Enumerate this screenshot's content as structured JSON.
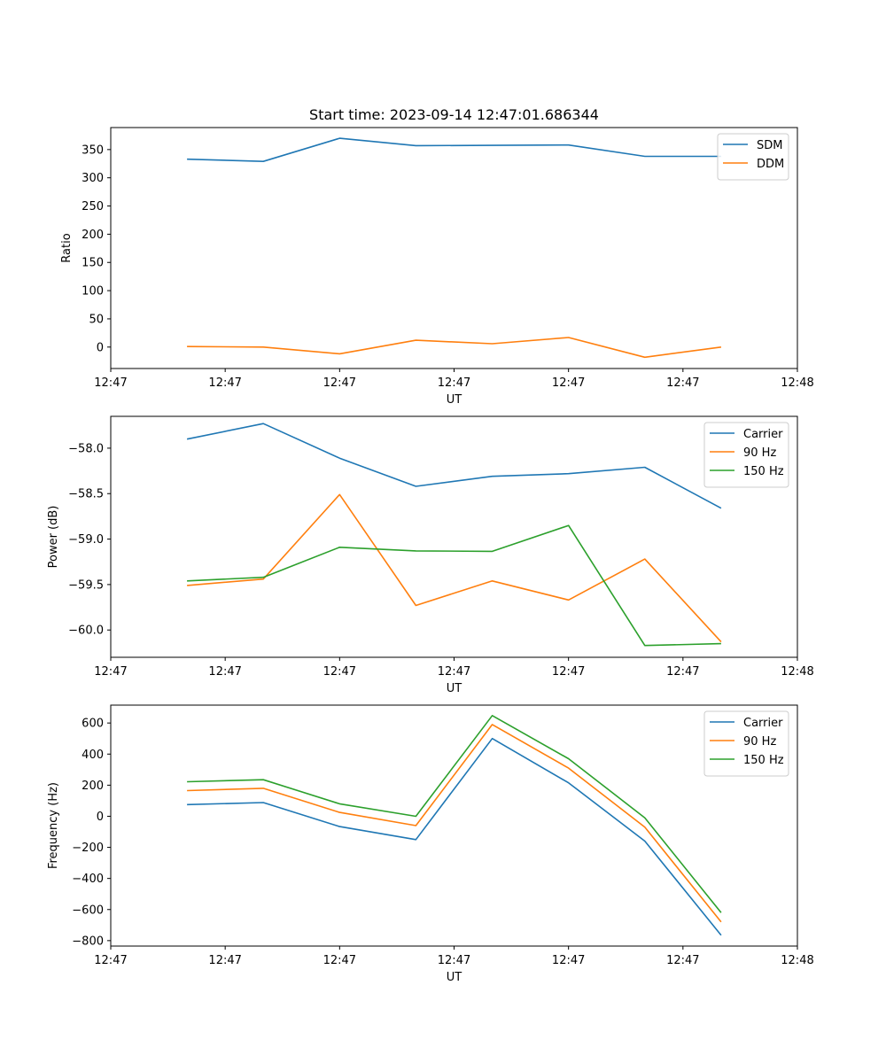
{
  "chart_data": [
    {
      "type": "line",
      "title": "Start time: 2023-09-14 12:47:01.686344",
      "xlabel": "UT",
      "ylabel": "Ratio",
      "x": [
        1,
        2,
        3,
        4,
        5,
        6,
        7,
        8
      ],
      "xlim": [
        0,
        9
      ],
      "x_ticks": [
        0,
        1.5,
        3,
        4.5,
        6,
        7.5,
        9
      ],
      "x_tick_labels": [
        "12:47",
        "12:47",
        "12:47",
        "12:47",
        "12:47",
        "12:47",
        "12:48"
      ],
      "ylim": [
        -38,
        389
      ],
      "y_ticks": [
        0,
        50,
        100,
        150,
        200,
        250,
        300,
        350
      ],
      "legend_position": "top-right",
      "series": [
        {
          "name": "SDM",
          "color": "#1f77b4",
          "values": [
            333,
            329,
            370,
            357,
            357.5,
            358,
            338,
            338
          ]
        },
        {
          "name": "DDM",
          "color": "#ff7f0e",
          "values": [
            1,
            0,
            -12,
            12,
            6,
            17,
            -18,
            0
          ]
        }
      ]
    },
    {
      "type": "line",
      "title": "",
      "xlabel": "UT",
      "ylabel": "Power (dB)",
      "x": [
        1,
        2,
        3,
        4,
        5,
        6,
        7,
        8
      ],
      "xlim": [
        0,
        9
      ],
      "x_ticks": [
        0,
        1.5,
        3,
        4.5,
        6,
        7.5,
        9
      ],
      "x_tick_labels": [
        "12:47",
        "12:47",
        "12:47",
        "12:47",
        "12:47",
        "12:47",
        "12:48"
      ],
      "ylim": [
        -60.3,
        -57.65
      ],
      "y_ticks": [
        -60.0,
        -59.5,
        -59.0,
        -58.5,
        -58.0
      ],
      "y_tick_labels": [
        "−60.0",
        "−59.5",
        "−59.0",
        "−58.5",
        "−58.0"
      ],
      "legend_position": "top-right",
      "series": [
        {
          "name": "Carrier",
          "color": "#1f77b4",
          "values": [
            -57.9,
            -57.73,
            -58.11,
            -58.42,
            -58.31,
            -58.28,
            -58.21,
            -58.66
          ]
        },
        {
          "name": "90 Hz",
          "color": "#ff7f0e",
          "values": [
            -59.51,
            -59.44,
            -58.51,
            -59.73,
            -59.46,
            -59.67,
            -59.22,
            -60.13
          ]
        },
        {
          "name": "150 Hz",
          "color": "#2ca02c",
          "values": [
            -59.46,
            -59.42,
            -59.09,
            -59.13,
            -59.135,
            -58.85,
            -60.17,
            -60.15
          ]
        }
      ]
    },
    {
      "type": "line",
      "title": "",
      "xlabel": "UT",
      "ylabel": "Frequency (Hz)",
      "x": [
        1,
        2,
        3,
        4,
        5,
        6,
        7,
        8
      ],
      "xlim": [
        0,
        9
      ],
      "x_ticks": [
        0,
        1.5,
        3,
        4.5,
        6,
        7.5,
        9
      ],
      "x_tick_labels": [
        "12:47",
        "12:47",
        "12:47",
        "12:47",
        "12:47",
        "12:47",
        "12:48"
      ],
      "ylim": [
        -835,
        715
      ],
      "y_ticks": [
        -800,
        -600,
        -400,
        -200,
        0,
        200,
        400,
        600
      ],
      "y_tick_labels": [
        "−800",
        "−600",
        "−400",
        "−200",
        "0",
        "200",
        "400",
        "600"
      ],
      "legend_position": "top-right",
      "series": [
        {
          "name": "Carrier",
          "color": "#1f77b4",
          "values": [
            75,
            88,
            -66,
            -150,
            500,
            215,
            -160,
            -765
          ]
        },
        {
          "name": "90 Hz",
          "color": "#ff7f0e",
          "values": [
            165,
            180,
            25,
            -60,
            590,
            310,
            -70,
            -680
          ]
        },
        {
          "name": "150 Hz",
          "color": "#2ca02c",
          "values": [
            222,
            235,
            80,
            0,
            648,
            370,
            -10,
            -620
          ]
        }
      ]
    }
  ]
}
